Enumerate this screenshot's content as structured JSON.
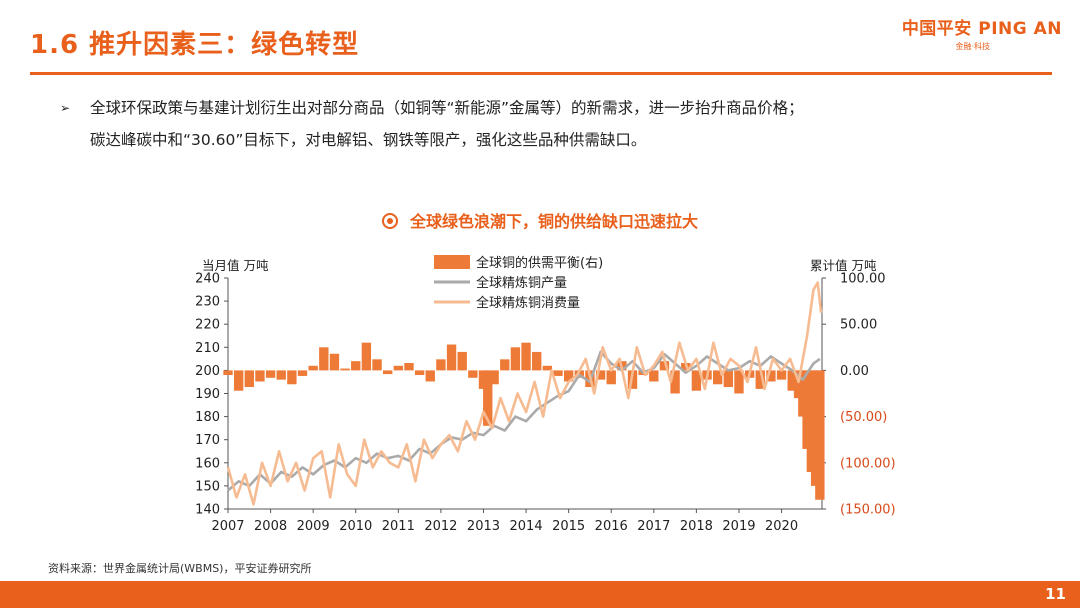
{
  "header": {
    "title": "1.6 推升因素三：绿色转型",
    "logo_main": "中国平安 PING AN",
    "logo_sub": "金融·科技"
  },
  "bullet": {
    "line1": "全球环保政策与基建计划衍生出对部分商品（如铜等“新能源”金属等）的新需求，进一步抬升商品价格；",
    "line2": "碳达峰碳中和“30.60”目标下，对电解铝、钢铁等限产，强化这些品种供需缺口。"
  },
  "chart_title": "全球绿色浪潮下，铜的供给缺口迅速拉大",
  "source": "资料来源：世界金属统计局(WBMS)，平安证券研究所",
  "page_number": "11",
  "chart_data": {
    "type": "bar+line",
    "ylabel_left": "当月值 万吨",
    "ylabel_right": "累计值 万吨",
    "ylim_left": [
      140,
      240
    ],
    "ylim_right": [
      -150,
      100
    ],
    "yticks_left": [
      "140",
      "150",
      "160",
      "170",
      "180",
      "190",
      "200",
      "210",
      "220",
      "230",
      "240"
    ],
    "yticks_right": [
      "(150.00)",
      "(100.00)",
      "(50.00)",
      "0.00",
      "50.00",
      "100.00"
    ],
    "yticks_right_values": [
      -150,
      -100,
      -50,
      0,
      50,
      100
    ],
    "x_labels": [
      "2007",
      "2008",
      "2009",
      "2010",
      "2011",
      "2012",
      "2013",
      "2014",
      "2015",
      "2016",
      "2017",
      "2018",
      "2019",
      "2020"
    ],
    "x_range": [
      2007,
      2020.95
    ],
    "legend_position": "top-center",
    "colors": {
      "balance": "#ee7a38",
      "production": "#aaaaaa",
      "consumption": "#f6bb91",
      "axis_right": "#d84a1a"
    },
    "series": [
      {
        "name": "全球铜的供需平衡(右)",
        "kind": "bar",
        "axis": "right",
        "x": [
          2007.0,
          2007.25,
          2007.5,
          2007.75,
          2008.0,
          2008.25,
          2008.5,
          2008.75,
          2009.0,
          2009.25,
          2009.5,
          2009.75,
          2010.0,
          2010.25,
          2010.5,
          2010.75,
          2011.0,
          2011.25,
          2011.5,
          2011.75,
          2012.0,
          2012.25,
          2012.5,
          2012.75,
          2013.0,
          2013.1,
          2013.25,
          2013.5,
          2013.75,
          2014.0,
          2014.25,
          2014.5,
          2014.75,
          2015.0,
          2015.25,
          2015.5,
          2015.75,
          2016.0,
          2016.25,
          2016.5,
          2016.75,
          2017.0,
          2017.25,
          2017.5,
          2017.75,
          2018.0,
          2018.25,
          2018.5,
          2018.75,
          2019.0,
          2019.25,
          2019.5,
          2019.75,
          2020.0,
          2020.25,
          2020.4,
          2020.5,
          2020.6,
          2020.7,
          2020.8,
          2020.9
        ],
        "values": [
          -5,
          -22,
          -18,
          -12,
          -8,
          -10,
          -15,
          -6,
          5,
          25,
          18,
          2,
          10,
          30,
          12,
          -4,
          5,
          8,
          -5,
          -12,
          12,
          28,
          20,
          -8,
          -20,
          -60,
          -15,
          12,
          25,
          30,
          20,
          5,
          -6,
          -12,
          -8,
          -18,
          -10,
          -15,
          10,
          -20,
          -5,
          -12,
          10,
          -25,
          8,
          -22,
          -10,
          -15,
          -18,
          -25,
          -8,
          -20,
          -12,
          -10,
          -22,
          -30,
          -50,
          -85,
          -110,
          -125,
          -140
        ]
      },
      {
        "name": "全球精炼铜产量",
        "kind": "line",
        "axis": "left",
        "x": [
          2007.0,
          2007.25,
          2007.5,
          2007.75,
          2008.0,
          2008.25,
          2008.5,
          2008.75,
          2009.0,
          2009.25,
          2009.5,
          2009.75,
          2010.0,
          2010.25,
          2010.5,
          2010.75,
          2011.0,
          2011.25,
          2011.5,
          2011.75,
          2012.0,
          2012.25,
          2012.5,
          2012.75,
          2013.0,
          2013.25,
          2013.5,
          2013.75,
          2014.0,
          2014.25,
          2014.5,
          2014.75,
          2015.0,
          2015.25,
          2015.5,
          2015.75,
          2016.0,
          2016.25,
          2016.5,
          2016.75,
          2017.0,
          2017.25,
          2017.5,
          2017.75,
          2018.0,
          2018.25,
          2018.5,
          2018.75,
          2019.0,
          2019.25,
          2019.5,
          2019.75,
          2020.0,
          2020.25,
          2020.5,
          2020.75,
          2020.9
        ],
        "values": [
          148,
          152,
          150,
          155,
          151,
          156,
          154,
          158,
          155,
          159,
          161,
          158,
          162,
          160,
          164,
          162,
          163,
          161,
          166,
          164,
          168,
          171,
          170,
          173,
          172,
          176,
          174,
          180,
          178,
          183,
          186,
          189,
          191,
          198,
          195,
          208,
          203,
          200,
          204,
          199,
          201,
          207,
          203,
          199,
          202,
          206,
          203,
          200,
          201,
          204,
          202,
          206,
          203,
          200,
          196,
          203,
          205
        ]
      },
      {
        "name": "全球精炼铜消费量",
        "kind": "line",
        "axis": "left",
        "x": [
          2007.0,
          2007.2,
          2007.4,
          2007.6,
          2007.8,
          2008.0,
          2008.2,
          2008.4,
          2008.6,
          2008.8,
          2009.0,
          2009.2,
          2009.4,
          2009.6,
          2009.8,
          2010.0,
          2010.2,
          2010.4,
          2010.6,
          2010.8,
          2011.0,
          2011.2,
          2011.4,
          2011.6,
          2011.8,
          2012.0,
          2012.2,
          2012.4,
          2012.6,
          2012.8,
          2013.0,
          2013.2,
          2013.4,
          2013.6,
          2013.8,
          2014.0,
          2014.2,
          2014.4,
          2014.6,
          2014.8,
          2015.0,
          2015.2,
          2015.4,
          2015.6,
          2015.8,
          2016.0,
          2016.2,
          2016.4,
          2016.6,
          2016.8,
          2017.0,
          2017.2,
          2017.4,
          2017.6,
          2017.8,
          2018.0,
          2018.2,
          2018.4,
          2018.6,
          2018.8,
          2019.0,
          2019.2,
          2019.4,
          2019.6,
          2019.8,
          2020.0,
          2020.2,
          2020.4,
          2020.6,
          2020.75,
          2020.85,
          2020.93
        ],
        "values": [
          158,
          145,
          155,
          142,
          160,
          150,
          165,
          152,
          160,
          148,
          162,
          165,
          145,
          168,
          155,
          150,
          170,
          158,
          165,
          160,
          158,
          168,
          152,
          170,
          162,
          168,
          172,
          165,
          178,
          170,
          182,
          175,
          188,
          178,
          190,
          182,
          195,
          180,
          200,
          188,
          195,
          198,
          205,
          190,
          210,
          200,
          205,
          188,
          210,
          198,
          202,
          208,
          195,
          212,
          200,
          205,
          192,
          212,
          198,
          205,
          202,
          195,
          210,
          192,
          205,
          200,
          205,
          195,
          215,
          235,
          238,
          225
        ]
      }
    ]
  }
}
